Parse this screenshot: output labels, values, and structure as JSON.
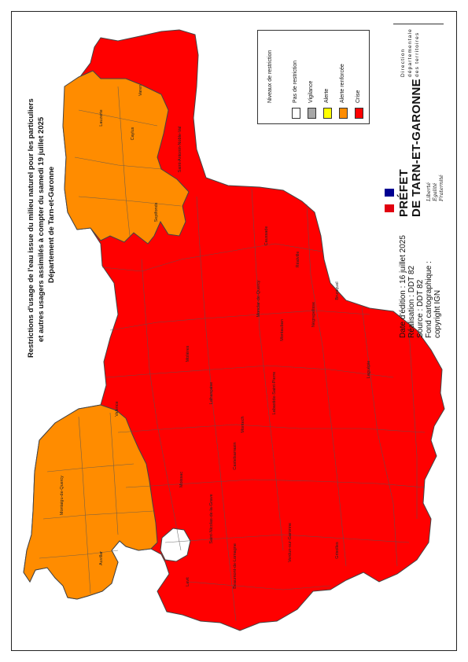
{
  "title": {
    "line1": "Restrictions d'usage de l'eau issue du milieu naturel pour les particuliers",
    "line2": "et autres usagers assimilés à compter du samedi 19 juillet 2025",
    "line3": "Département de Tarn-et-Garonne"
  },
  "legend": {
    "heading": "Niveaux de restriction",
    "items": [
      {
        "label": "Pas de restriction",
        "color": "#ffffff"
      },
      {
        "label": "Vigilance",
        "color": "#a6a6a6"
      },
      {
        "label": "Alerte",
        "color": "#ffff00"
      },
      {
        "label": "Alerte renforcée",
        "color": "#ff8c00"
      },
      {
        "label": "Crise",
        "color": "#ff0000"
      }
    ]
  },
  "info": {
    "edition": "Date d'édition : 16 juillet 2025",
    "realisation": "Réalisation : DDT 82",
    "source": "Source : DDT 82",
    "fond": "Fond cartographique :",
    "copyright": "copyright IGN"
  },
  "prefecture": {
    "line1": "PRÉFET",
    "line2": "DE TARN-ET-GARONNE",
    "motto1": "Liberté",
    "motto2": "Égalité",
    "motto3": "Fraternité",
    "direction1": "Direction",
    "direction2": "départementale",
    "direction3": "des territoires"
  },
  "map": {
    "colors": {
      "crise": "#ff0000",
      "alerte_renforcee": "#ff8c00",
      "none": "#ffffff",
      "border": "#555555"
    },
    "communes": [
      {
        "name": "Montauban",
        "zone": "crise"
      },
      {
        "name": "Castelsarrasin",
        "zone": "crise"
      },
      {
        "name": "Moissac",
        "zone": "crise"
      },
      {
        "name": "Caussade",
        "zone": "crise"
      },
      {
        "name": "Valence",
        "zone": "alerte_renforcee"
      },
      {
        "name": "Lauzerte",
        "zone": "alerte_renforcee"
      },
      {
        "name": "Beaumont-de-Lomagne",
        "zone": "crise"
      },
      {
        "name": "Verdun-sur-Garonne",
        "zone": "crise"
      },
      {
        "name": "Grisolles",
        "zone": "crise"
      },
      {
        "name": "Nègrepelisse",
        "zone": "crise"
      },
      {
        "name": "Saint-Antonin-Noble-Val",
        "zone": "crise"
      },
      {
        "name": "Caylus",
        "zone": "alerte_renforcee"
      },
      {
        "name": "Septfonds",
        "zone": "alerte_renforcee"
      },
      {
        "name": "Montaigu-de-Quercy",
        "zone": "alerte_renforcee"
      },
      {
        "name": "Lafrançaise",
        "zone": "crise"
      },
      {
        "name": "Molières",
        "zone": "crise"
      },
      {
        "name": "Montech",
        "zone": "crise"
      },
      {
        "name": "Labastide-Saint-Pierre",
        "zone": "crise"
      },
      {
        "name": "Réalville",
        "zone": "crise"
      },
      {
        "name": "Lavit",
        "zone": "crise"
      },
      {
        "name": "Auvillar",
        "zone": "alerte_renforcee"
      },
      {
        "name": "Saint-Nicolas-de-la-Grave",
        "zone": "crise"
      },
      {
        "name": "Bruniquel",
        "zone": "crise"
      },
      {
        "name": "Monclar-de-Quercy",
        "zone": "crise"
      },
      {
        "name": "Varen",
        "zone": "crise"
      },
      {
        "name": "Laguépie",
        "zone": "crise"
      }
    ]
  }
}
